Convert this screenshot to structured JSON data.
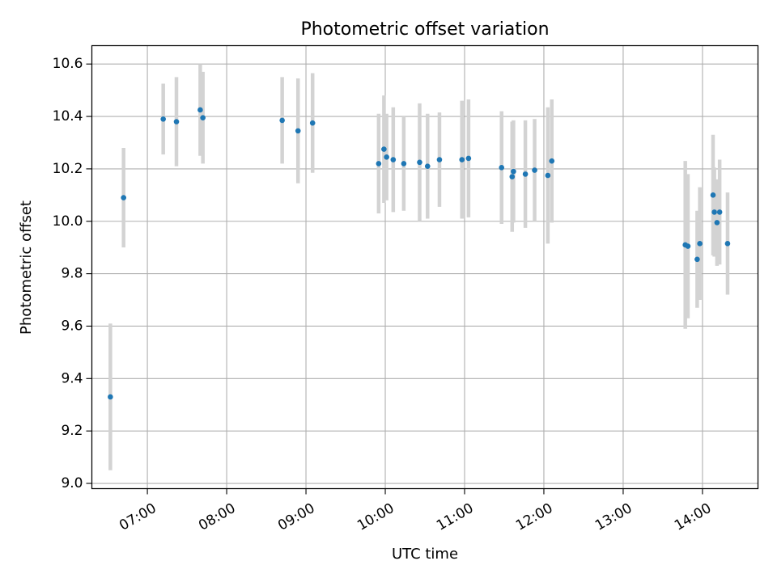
{
  "chart_data": {
    "type": "scatter",
    "title": "Photometric offset variation",
    "xlabel": "UTC time",
    "ylabel": "Photometric offset",
    "x_ticks": [
      "07:00",
      "08:00",
      "09:00",
      "10:00",
      "11:00",
      "12:00",
      "13:00",
      "14:00"
    ],
    "y_ticks": [
      "9.0",
      "9.2",
      "9.4",
      "9.6",
      "9.8",
      "10.0",
      "10.2",
      "10.4",
      "10.6"
    ],
    "xlim": [
      "06:18",
      "14:42"
    ],
    "ylim": [
      8.98,
      10.67
    ],
    "grid": true,
    "colors": {
      "points": "#1f77b4",
      "errorbars": "#d3d3d3",
      "grid": "#b0b0b0"
    },
    "series": [
      {
        "points": [
          {
            "x": "06:32",
            "y": 9.33,
            "err": 0.28
          },
          {
            "x": "06:42",
            "y": 10.09,
            "err": 0.19
          },
          {
            "x": "07:12",
            "y": 10.39,
            "err": 0.135
          },
          {
            "x": "07:22",
            "y": 10.38,
            "err": 0.17
          },
          {
            "x": "07:40",
            "y": 10.425,
            "err": 0.175
          },
          {
            "x": "07:42",
            "y": 10.395,
            "err": 0.175
          },
          {
            "x": "08:42",
            "y": 10.385,
            "err": 0.165
          },
          {
            "x": "08:54",
            "y": 10.345,
            "err": 0.2
          },
          {
            "x": "09:05",
            "y": 10.375,
            "err": 0.19
          },
          {
            "x": "09:55",
            "y": 10.22,
            "err": 0.19
          },
          {
            "x": "09:59",
            "y": 10.275,
            "err": 0.205
          },
          {
            "x": "10:01",
            "y": 10.245,
            "err": 0.165
          },
          {
            "x": "10:06",
            "y": 10.235,
            "err": 0.2
          },
          {
            "x": "10:14",
            "y": 10.22,
            "err": 0.18
          },
          {
            "x": "10:26",
            "y": 10.225,
            "err": 0.225
          },
          {
            "x": "10:32",
            "y": 10.21,
            "err": 0.2
          },
          {
            "x": "10:41",
            "y": 10.235,
            "err": 0.18
          },
          {
            "x": "10:58",
            "y": 10.235,
            "err": 0.225
          },
          {
            "x": "11:03",
            "y": 10.24,
            "err": 0.225
          },
          {
            "x": "11:28",
            "y": 10.205,
            "err": 0.215
          },
          {
            "x": "11:36",
            "y": 10.17,
            "err": 0.21
          },
          {
            "x": "11:37",
            "y": 10.19,
            "err": 0.195
          },
          {
            "x": "11:46",
            "y": 10.18,
            "err": 0.205
          },
          {
            "x": "11:53",
            "y": 10.195,
            "err": 0.195
          },
          {
            "x": "12:03",
            "y": 10.175,
            "err": 0.26
          },
          {
            "x": "12:06",
            "y": 10.23,
            "err": 0.235
          },
          {
            "x": "13:47",
            "y": 9.91,
            "err": 0.32
          },
          {
            "x": "13:49",
            "y": 9.905,
            "err": 0.275
          },
          {
            "x": "13:56",
            "y": 9.855,
            "err": 0.185
          },
          {
            "x": "13:58",
            "y": 9.915,
            "err": 0.215
          },
          {
            "x": "14:08",
            "y": 10.1,
            "err": 0.23
          },
          {
            "x": "14:09",
            "y": 10.035,
            "err": 0.17
          },
          {
            "x": "14:11",
            "y": 9.995,
            "err": 0.165
          },
          {
            "x": "14:13",
            "y": 10.035,
            "err": 0.2
          },
          {
            "x": "14:19",
            "y": 9.915,
            "err": 0.195
          }
        ]
      }
    ]
  }
}
